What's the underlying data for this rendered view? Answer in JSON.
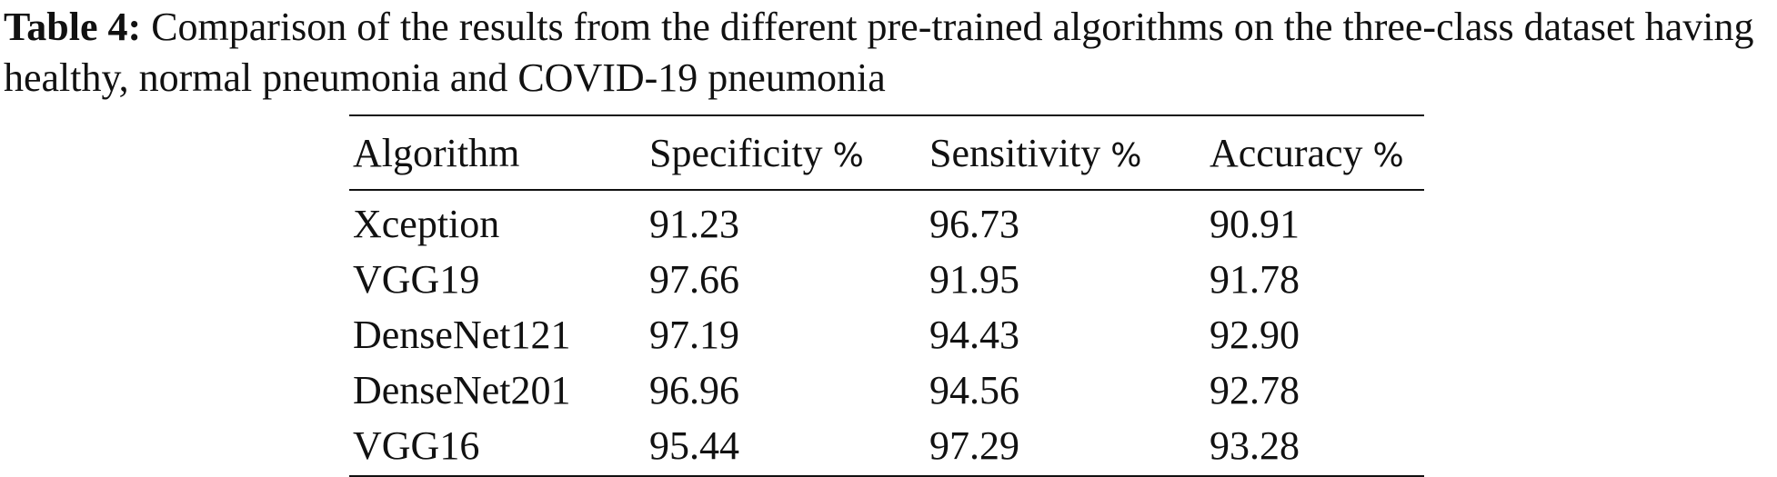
{
  "caption": {
    "label": "Table 4:",
    "text": "Comparison of the results from the different pre-trained algorithms on the three-class dataset having healthy, normal pneumonia and COVID-19 pneumonia"
  },
  "table": {
    "headers": [
      "Algorithm",
      "Specificity",
      "Sensitivity",
      "Accuracy"
    ],
    "header_unit": "%",
    "rows": [
      [
        "Xception",
        "91.23",
        "96.73",
        "90.91"
      ],
      [
        "VGG19",
        "97.66",
        "91.95",
        "91.78"
      ],
      [
        "DenseNet121",
        "97.19",
        "94.43",
        "92.90"
      ],
      [
        "DenseNet201",
        "96.96",
        "94.56",
        "92.78"
      ],
      [
        "VGG16",
        "95.44",
        "97.29",
        "93.28"
      ]
    ]
  }
}
